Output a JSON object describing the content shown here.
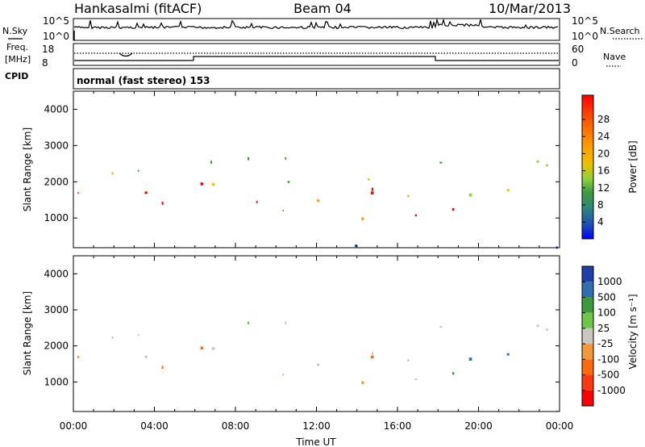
{
  "header": {
    "station": "Hankasalmi (fitACF)",
    "beam": "Beam 04",
    "date": "10/Mar/2013"
  },
  "left_labels": {
    "nsky": "N.Sky",
    "freq_line1": "Freq.",
    "freq_line2": "[MHz]",
    "cpid": "CPID"
  },
  "right_labels": {
    "nsearch": "N.Search",
    "nave": "Nave"
  },
  "cpid_text": "normal (fast stereo) 153",
  "x_axis": {
    "label": "Time UT",
    "ticks": [
      "00:00",
      "04:00",
      "08:00",
      "12:00",
      "16:00",
      "20:00",
      "00:00"
    ]
  },
  "noise_panel": {
    "ticks_left": [
      "10^5",
      "10^0"
    ],
    "ticks_right": [
      "10^5",
      "10^0"
    ]
  },
  "freq_panel": {
    "ticks_left": [
      "18",
      "8"
    ],
    "ticks_right": [
      "60",
      "0"
    ]
  },
  "chart_data": [
    {
      "type": "heatmap",
      "title": "",
      "xlabel": "Time UT",
      "ylabel": "Slant Range [km]",
      "x_range_hours": [
        0,
        24
      ],
      "ylim": [
        180,
        4500
      ],
      "y_ticks": [
        1000,
        2000,
        3000,
        4000
      ],
      "x_ticks": [
        "00:00",
        "04:00",
        "08:00",
        "12:00",
        "16:00",
        "20:00",
        "00:00"
      ],
      "colorbar": {
        "label": "Power [dB]",
        "ticks": [
          "28",
          "24",
          "20",
          "16",
          "12",
          "8",
          "4"
        ],
        "colors": [
          "#ff0000",
          "#ff6000",
          "#ff9a00",
          "#f0c000",
          "#8ed23c",
          "#3c9a3c",
          "#2d8a7a",
          "#1e50b4",
          "#0000ff"
        ]
      }
    },
    {
      "type": "heatmap",
      "title": "",
      "xlabel": "Time UT",
      "ylabel": "Slant Range [km]",
      "x_range_hours": [
        0,
        24
      ],
      "ylim": [
        180,
        4500
      ],
      "y_ticks": [
        1000,
        2000,
        3000,
        4000
      ],
      "x_ticks": [
        "00:00",
        "04:00",
        "08:00",
        "12:00",
        "16:00",
        "20:00",
        "00:00"
      ],
      "colorbar": {
        "label": "Velocity [m s⁻¹]",
        "ticks": [
          "1000",
          "500",
          "100",
          "25",
          "-25",
          "-100",
          "-500",
          "-1000"
        ],
        "colors": [
          "#1f3fa8",
          "#2f6fb0",
          "#3c9a3c",
          "#6cc64a",
          "#c8c8c0",
          "#f09a3a",
          "#ff6a10",
          "#ff3a10",
          "#ff0000"
        ]
      }
    }
  ]
}
